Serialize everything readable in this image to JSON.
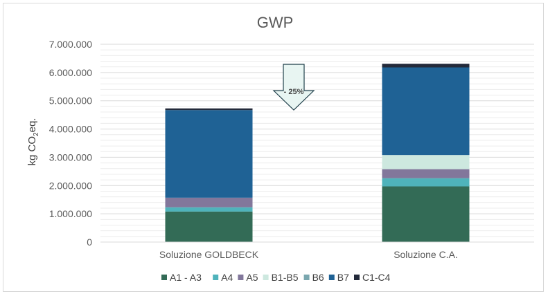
{
  "chart_data": {
    "type": "bar",
    "stacked": true,
    "title": "GWP",
    "ylabel": "kg CO2eq.",
    "ylabel_parts": {
      "main": "kg CO",
      "sub": "2",
      "tail": "eq."
    },
    "xlabel": "",
    "ylim": [
      0,
      7000000
    ],
    "yticks": [
      0,
      1000000,
      2000000,
      3000000,
      4000000,
      5000000,
      6000000,
      7000000
    ],
    "ytick_labels": [
      "0",
      "1.000.000",
      "2.000.000",
      "3.000.000",
      "4.000.000",
      "5.000.000",
      "6.000.000",
      "7.000.000"
    ],
    "grid": true,
    "legend_position": "bottom",
    "categories": [
      "Soluzione GOLDBECK",
      "Soluzione C.A."
    ],
    "series": [
      {
        "name": "A1 - A3",
        "color": "#336b56",
        "values": [
          1080000,
          1970000
        ]
      },
      {
        "name": "A4",
        "color": "#4fb3bb",
        "values": [
          150000,
          290000
        ]
      },
      {
        "name": "A5",
        "color": "#82779b",
        "values": [
          340000,
          320000
        ]
      },
      {
        "name": "B1-B5",
        "color": "#cde8df",
        "values": [
          0,
          500000
        ]
      },
      {
        "name": "B6",
        "color": "#7aa7af",
        "values": [
          0,
          0
        ]
      },
      {
        "name": "B7",
        "color": "#1f6295",
        "values": [
          3100000,
          3100000
        ]
      },
      {
        "name": "C1-C4",
        "color": "#232a3a",
        "values": [
          60000,
          130000
        ]
      }
    ],
    "annotation": {
      "text": "- 25%",
      "shape": "down-arrow",
      "fill": "#e8f5f2",
      "stroke": "#1f3f4a"
    }
  }
}
